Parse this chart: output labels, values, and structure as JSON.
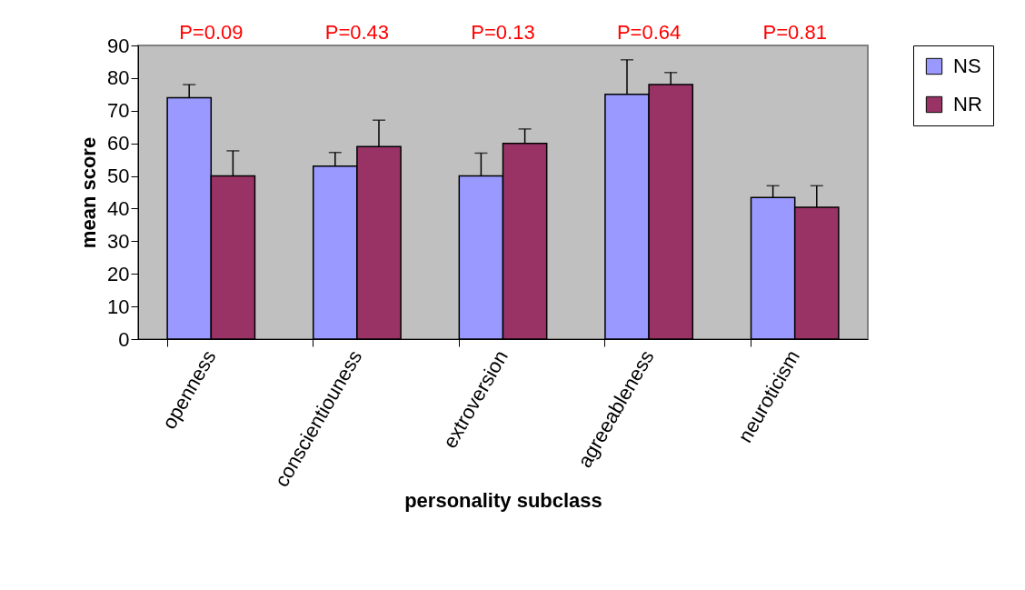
{
  "chart_data": {
    "type": "bar",
    "xlabel": "personality subclass",
    "ylabel": "mean score",
    "categories": [
      "openness",
      "conscientiouness",
      "extroversion",
      "agreeableness",
      "neuroticism"
    ],
    "series": [
      {
        "name": "NS",
        "color": "#9999ff",
        "values": [
          74,
          53,
          50,
          75,
          43.4
        ],
        "errors": [
          [
            74,
            78
          ],
          [
            53,
            57.2
          ],
          [
            50,
            57
          ],
          [
            75,
            85.6
          ],
          [
            43.4,
            47
          ]
        ]
      },
      {
        "name": "NR",
        "color": "#993366",
        "values": [
          50,
          59,
          60,
          78,
          40.4
        ],
        "errors": [
          [
            50,
            57.7
          ],
          [
            59,
            67.1
          ],
          [
            60,
            64.4
          ],
          [
            78,
            81.7
          ],
          [
            40.4,
            47
          ]
        ]
      }
    ],
    "ylim": [
      0,
      90
    ],
    "yticks": [
      0,
      10,
      20,
      30,
      40,
      50,
      60,
      70,
      80,
      90
    ],
    "legend": "right",
    "annotations": [
      "P=0.09",
      "P=0.43",
      "P=0.13",
      "P=0.64",
      "P=0.81"
    ]
  }
}
